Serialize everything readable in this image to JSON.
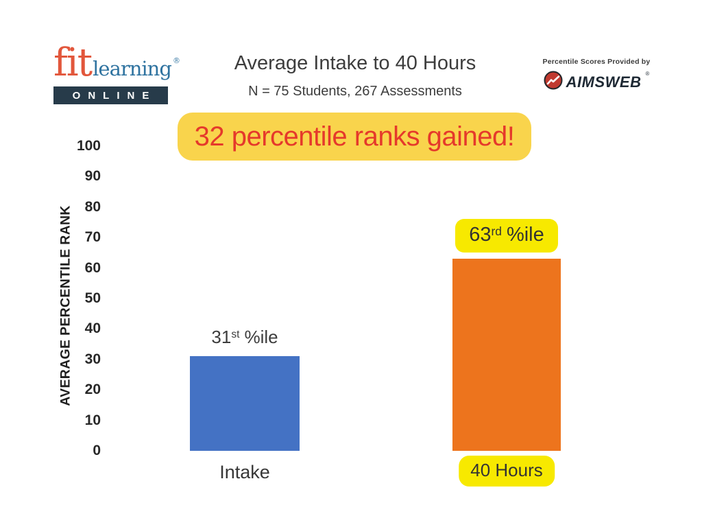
{
  "header": {
    "logo": {
      "brand_fit": "fit",
      "brand_learning": "learning",
      "registered": "®",
      "online": "ONLINE"
    },
    "title": "Average Intake to 40 Hours",
    "subtitle": "N = 75 Students, 267 Assessments",
    "provider": {
      "caption": "Percentile Scores Provided by",
      "brand": "AIMSWEB",
      "registered": "®"
    }
  },
  "banner": {
    "text": "32 percentile ranks gained!"
  },
  "chart_data": {
    "type": "bar",
    "title": "Average Intake to 40 Hours",
    "subtitle": "N = 75 Students, 267 Assessments",
    "xlabel": "",
    "ylabel": "AVERAGE PERCENTILE RANK",
    "ylim": [
      0,
      100
    ],
    "yticks": [
      0,
      10,
      20,
      30,
      40,
      50,
      60,
      70,
      80,
      90,
      100
    ],
    "grid": false,
    "legend": "none",
    "categories": [
      "Intake",
      "40 Hours"
    ],
    "values": [
      31,
      63
    ],
    "bars": [
      {
        "category": "Intake",
        "value": 31,
        "value_label": {
          "base": "31",
          "ordinal": "st",
          "suffix": "%ile"
        },
        "color": "#4472C4",
        "highlighted": false
      },
      {
        "category": "40 Hours",
        "value": 63,
        "value_label": {
          "base": "63",
          "ordinal": "rd",
          "suffix": "%ile"
        },
        "color": "#ED741D",
        "highlighted": true
      }
    ],
    "annotation": "32 percentile ranks gained!"
  },
  "colors": {
    "banner_bg": "#F9D44C",
    "banner_text": "#E5392B",
    "highlight_yellow": "#F7E900",
    "bar_blue": "#4472C4",
    "bar_orange": "#ED741D",
    "logo_red": "#E2573C",
    "logo_blue": "#2F73A0",
    "online_bg": "#273B4A",
    "aimsweb_red": "#C0392F"
  }
}
